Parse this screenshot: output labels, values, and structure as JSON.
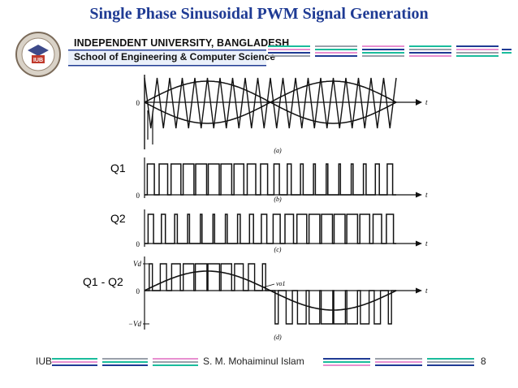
{
  "slide": {
    "title": "Single Phase Sinusoidal PWM Signal Generation",
    "page_number": "8"
  },
  "header": {
    "university": "INDEPENDENT UNIVERSITY, BANGLADESH",
    "school": "School of Engineering & Computer Science",
    "logo_text": "IUB"
  },
  "footer": {
    "left": "IUB",
    "center": "S. M. Mohaiminul Islam"
  },
  "diagram": {
    "panel_a": {
      "origin": "0",
      "axis": "t",
      "caption": "(a)"
    },
    "panel_b": {
      "label": "Q1",
      "origin": "0",
      "axis": "t",
      "caption": "(b)"
    },
    "panel_c": {
      "label": "Q2",
      "origin": "0",
      "axis": "t",
      "caption": "(c)"
    },
    "panel_d": {
      "label": "Q1 - Q2",
      "top_level": "Vd",
      "bottom_level": "−Vd",
      "origin": "0",
      "axis": "t",
      "fundamental": "vo1",
      "caption": "(d)"
    }
  },
  "colors": {
    "title": "#1f3b94",
    "stripe_teal": "#1abc9c",
    "stripe_pink": "#e88fd0",
    "stripe_blue": "#1f3b94",
    "stripe_gray": "#9aa0aa"
  }
}
